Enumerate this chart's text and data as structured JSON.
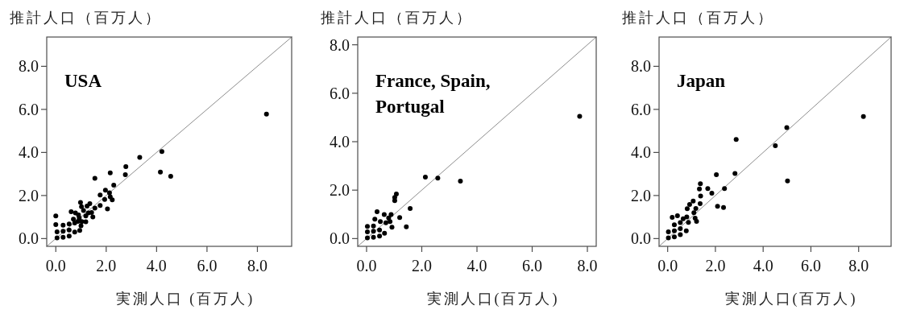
{
  "chart_data": [
    {
      "type": "scatter",
      "title": "USA",
      "xlabel": "実測人口 (百万人)",
      "ylabel": "推計人口（百万人）",
      "xlim": [
        -0.36,
        9.36
      ],
      "ylim": [
        -0.36,
        9.36
      ],
      "xticks": [
        {
          "value": 0,
          "label": "0.0"
        },
        {
          "value": 2,
          "label": "2.0"
        },
        {
          "value": 4,
          "label": "4.0"
        },
        {
          "value": 6,
          "label": "6.0"
        },
        {
          "value": 8,
          "label": "8.0"
        }
      ],
      "yticks": [
        {
          "value": 0,
          "label": "0.0"
        },
        {
          "value": 2,
          "label": "2.0"
        },
        {
          "value": 4,
          "label": "4.0"
        },
        {
          "value": 6,
          "label": "6.0"
        },
        {
          "value": 8,
          "label": "8.0"
        }
      ],
      "series": [
        {
          "type": "line",
          "color": "#808080",
          "x": [
            -0.36,
            9.36
          ],
          "values": [
            -0.36,
            9.36
          ]
        },
        {
          "type": "scatter",
          "color": "#000000",
          "marker": "circle",
          "x": [
            0.05,
            0.05,
            0.29,
            0.29,
            0.29,
            0.53,
            0.53,
            0.53,
            0.75,
            8.36,
            4.21,
            3.33,
            4.15,
            4.56,
            2.78,
            2.76,
            2.16,
            1.55,
            2.3,
            1.97,
            2.13,
            1.76,
            2.16,
            1.94,
            2.24,
            1.76,
            2.05,
            1.55,
            0.98,
            1.02,
            1.35,
            1.24,
            1.42,
            1.47,
            1.19,
            1.19,
            0.95,
            1.0,
            0,
            0,
            0.61,
            0.78,
            0.7,
            0.93,
            1.03,
            1.29,
            1.1,
            0.88,
            0.75,
            0.9
          ],
          "values": [
            0.03,
            0.31,
            0.06,
            0.34,
            0.62,
            0.12,
            0.4,
            0.68,
            0.3,
            5.78,
            4.04,
            3.77,
            3.09,
            2.89,
            3.34,
            2.97,
            3.05,
            2.8,
            2.48,
            2.25,
            2.13,
            2.02,
            1.94,
            1.82,
            1.8,
            1.54,
            1.38,
            1.42,
            1.68,
            1.48,
            1.62,
            1.51,
            1.21,
            1.0,
            1.05,
            0.78,
            0.38,
            0.59,
            1.05,
            0.65,
            1.25,
            1.19,
            0.9,
            0.96,
            0.79,
            1.19,
            1.3,
            0.8,
            0.72,
            1.1
          ]
        }
      ]
    },
    {
      "type": "scatter",
      "title": "France, Spain, Portugal",
      "xlabel": "実測人口(百万人)",
      "ylabel": "推計人口（百万人）",
      "xlim": [
        -0.32,
        8.32
      ],
      "ylim": [
        -0.32,
        8.32
      ],
      "xticks": [
        {
          "value": 0,
          "label": "0.0"
        },
        {
          "value": 2,
          "label": "2.0"
        },
        {
          "value": 4,
          "label": "4.0"
        },
        {
          "value": 6,
          "label": "6.0"
        },
        {
          "value": 8,
          "label": "8.0"
        }
      ],
      "yticks": [
        {
          "value": 0,
          "label": "0.0"
        },
        {
          "value": 2,
          "label": "2.0"
        },
        {
          "value": 4,
          "label": "4.0"
        },
        {
          "value": 6,
          "label": "6.0"
        },
        {
          "value": 8,
          "label": "8.0"
        }
      ],
      "series": [
        {
          "type": "line",
          "color": "#808080",
          "x": [
            -0.32,
            8.32
          ],
          "values": [
            -0.32,
            8.32
          ]
        },
        {
          "type": "scatter",
          "color": "#000000",
          "marker": "circle",
          "x": [
            0.03,
            0.03,
            0.03,
            0.25,
            0.25,
            0.25,
            0.47,
            0.47,
            0.65,
            0.3,
            0.5,
            0.7,
            0.8,
            0.85,
            7.72,
            2.13,
            2.58,
            3.4,
            1.08,
            1.02,
            1.02,
            1.58,
            1.2,
            1.44,
            0.38,
            0.64,
            0.89,
            0.92
          ],
          "values": [
            0.03,
            0.28,
            0.5,
            0.05,
            0.3,
            0.52,
            0.1,
            0.35,
            0.22,
            0.8,
            0.7,
            0.65,
            0.85,
            0.7,
            5.05,
            2.54,
            2.5,
            2.37,
            1.84,
            1.7,
            1.57,
            1.24,
            0.87,
            0.49,
            1.11,
            0.99,
            0.99,
            0.47
          ]
        }
      ]
    },
    {
      "type": "scatter",
      "title": "Japan",
      "xlabel": "実測人口(百万人)",
      "ylabel": "推計人口（百万人）",
      "xlim": [
        -0.36,
        9.36
      ],
      "ylim": [
        -0.36,
        9.36
      ],
      "xticks": [
        {
          "value": 0,
          "label": "0.0"
        },
        {
          "value": 2,
          "label": "2.0"
        },
        {
          "value": 4,
          "label": "4.0"
        },
        {
          "value": 6,
          "label": "6.0"
        },
        {
          "value": 8,
          "label": "8.0"
        }
      ],
      "yticks": [
        {
          "value": 0,
          "label": "0.0"
        },
        {
          "value": 2,
          "label": "2.0"
        },
        {
          "value": 4,
          "label": "4.0"
        },
        {
          "value": 6,
          "label": "6.0"
        },
        {
          "value": 8,
          "label": "8.0"
        }
      ],
      "series": [
        {
          "type": "line",
          "color": "#808080",
          "x": [
            -0.36,
            9.36
          ],
          "values": [
            -0.36,
            9.36
          ]
        },
        {
          "type": "scatter",
          "color": "#000000",
          "marker": "circle",
          "x": [
            8.2,
            4.99,
            4.51,
            2.87,
            5.02,
            2.04,
            2.82,
            2.38,
            2.09,
            2.34,
            1.68,
            1.85,
            1.37,
            1.33,
            1.38,
            1.36,
            1.07,
            0.92,
            0.82,
            1.18,
            1.1,
            1.15,
            1.21,
            0.03,
            0.03,
            0.28,
            0.28,
            0.28,
            0.53,
            0.53,
            0.53,
            0.78,
            0.19,
            0.41,
            0.65,
            0.8,
            0.87
          ],
          "values": [
            5.67,
            5.15,
            4.31,
            4.6,
            2.68,
            2.97,
            3.02,
            2.32,
            1.5,
            1.44,
            2.32,
            2.11,
            2.55,
            2.3,
            1.98,
            1.62,
            1.74,
            1.58,
            1.39,
            1.4,
            1.2,
            0.95,
            0.8,
            0.03,
            0.31,
            0.08,
            0.36,
            0.64,
            0.18,
            0.46,
            0.74,
            0.36,
            0.99,
            1.06,
            0.92,
            1.0,
            0.75
          ]
        }
      ]
    }
  ]
}
